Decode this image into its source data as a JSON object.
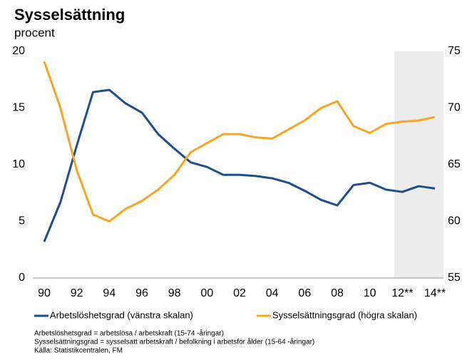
{
  "chart_data": {
    "type": "line",
    "title": "Sysselsättning",
    "subtitle": "procent",
    "categories": [
      "90",
      null,
      "92",
      null,
      "94",
      null,
      "96",
      null,
      "98",
      null,
      "00",
      null,
      "02",
      null,
      "04",
      null,
      "06",
      null,
      "08",
      null,
      "10",
      null,
      "12**",
      null,
      "14**"
    ],
    "series": [
      {
        "name": "Arbetslöshetsgrad (vänstra skalan)",
        "color": "#1f4e8c",
        "axis": "y",
        "values": [
          3.2,
          6.7,
          11.7,
          16.4,
          16.6,
          15.4,
          14.6,
          12.7,
          11.4,
          10.2,
          9.8,
          9.1,
          9.1,
          9.0,
          8.8,
          8.4,
          7.7,
          6.9,
          6.4,
          8.2,
          8.4,
          7.8,
          7.6,
          8.1,
          7.9
        ]
      },
      {
        "name": "Sysselsättningsgrad (högra skalan)",
        "color": "#f5a623",
        "axis": "y2",
        "values": [
          74.1,
          70.0,
          64.5,
          60.6,
          60.0,
          61.1,
          61.8,
          62.8,
          64.1,
          66.1,
          66.9,
          67.7,
          67.7,
          67.4,
          67.3,
          68.1,
          68.9,
          70.0,
          70.6,
          68.4,
          67.8,
          68.6,
          68.8,
          68.9,
          69.2
        ]
      }
    ],
    "ylim": [
      0,
      20
    ],
    "yticks": [
      0,
      5,
      10,
      15,
      20
    ],
    "y2lim": [
      55,
      75
    ],
    "y2ticks": [
      55,
      60,
      65,
      70,
      75
    ],
    "shaded_from": "12**",
    "shade_color": "#ececec",
    "grid": false,
    "legend": "bottom",
    "notes": [
      "Arbetslöshetsgrad = arbetslösa / arbetskraft (15-74 -åringar)",
      "Sysselsättningsgrad = sysselsatt arbetskraft / befolkning i arbetsför ålder  (15-64 -åringar)",
      "Källa: Statistikcentralen, FM"
    ]
  }
}
